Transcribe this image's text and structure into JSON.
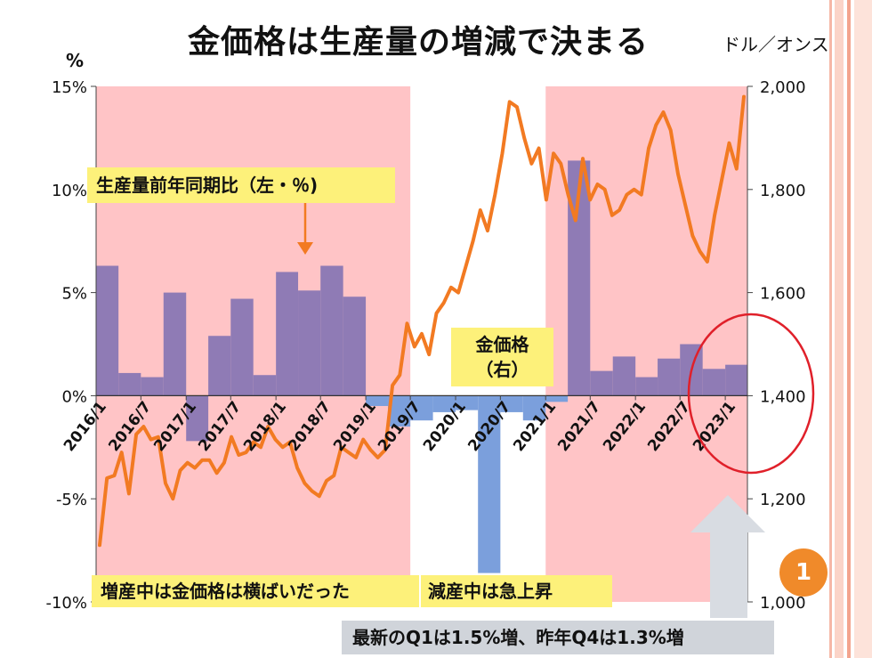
{
  "header": {
    "title": "金価格は生産量の増減で決まる",
    "right_unit": "ドル／オンス",
    "left_unit": "%"
  },
  "callouts": {
    "production": "生産量前年同期比（左・％)",
    "gold_line1": "金価格",
    "gold_line2": "（右）",
    "increase": "増産中は金価格は横ばいだった",
    "decrease": "減産中は急上昇",
    "latest": "最新のQ1は1.5%増、昨年Q4は1.3%増"
  },
  "badge": "1",
  "colors": {
    "bar": "#8f7bb5",
    "bar_negative": "#7b9fdc",
    "line": "#f27a22",
    "band": "#ffc4c6",
    "circle": "#e0202a",
    "callout": "#fdf17a",
    "arrow": "#d8dce2",
    "badge": "#f08a2a"
  },
  "chart_data": {
    "type": "bar+line",
    "x_tick_labels": [
      "2016/1",
      "2016/7",
      "2017/1",
      "2017/7",
      "2018/1",
      "2018/7",
      "2019/1",
      "2019/7",
      "2020/1",
      "2020/7",
      "2021/1",
      "2021/7",
      "2022/1",
      "2022/7",
      "2023/1"
    ],
    "y_left": {
      "ticks": [
        "-10%",
        "-5%",
        "0%",
        "5%",
        "10%",
        "15%"
      ],
      "range": [
        -10,
        15
      ],
      "unit": "%"
    },
    "y_right": {
      "ticks": [
        "1,000",
        "1,200",
        "1,400",
        "1,600",
        "1,800",
        "2,000"
      ],
      "range": [
        1000,
        2000
      ]
    },
    "shaded_periods": [
      {
        "start": "2016-01",
        "end": "2019-06"
      },
      {
        "start": "2021-01",
        "end": "2023-03"
      }
    ],
    "bars": {
      "name": "生産量前年同期比",
      "quarters": [
        "2016Q1",
        "2016Q2",
        "2016Q3",
        "2016Q4",
        "2017Q1",
        "2017Q2",
        "2017Q3",
        "2017Q4",
        "2018Q1",
        "2018Q2",
        "2018Q3",
        "2018Q4",
        "2019Q1",
        "2019Q2",
        "2019Q3",
        "2019Q4",
        "2020Q1",
        "2020Q2",
        "2020Q3",
        "2020Q4",
        "2021Q1",
        "2021Q2",
        "2021Q3",
        "2021Q4",
        "2022Q1",
        "2022Q2",
        "2022Q3",
        "2022Q4",
        "2023Q1"
      ],
      "values": [
        6.3,
        1.1,
        0.9,
        5.0,
        -2.2,
        2.9,
        4.7,
        1.0,
        6.0,
        5.1,
        6.3,
        4.8,
        -0.5,
        -1.5,
        -1.2,
        -0.8,
        -0.7,
        -8.6,
        -0.8,
        -1.2,
        -0.3,
        11.4,
        1.2,
        1.9,
        0.9,
        1.8,
        2.5,
        1.3,
        1.5
      ]
    },
    "line": {
      "name": "金価格",
      "values": [
        1110,
        1240,
        1245,
        1290,
        1210,
        1325,
        1340,
        1315,
        1320,
        1230,
        1200,
        1255,
        1270,
        1260,
        1275,
        1275,
        1250,
        1270,
        1320,
        1285,
        1290,
        1310,
        1300,
        1340,
        1315,
        1300,
        1310,
        1260,
        1230,
        1215,
        1205,
        1235,
        1245,
        1300,
        1290,
        1280,
        1315,
        1295,
        1280,
        1295,
        1420,
        1440,
        1540,
        1495,
        1520,
        1480,
        1560,
        1580,
        1610,
        1600,
        1650,
        1700,
        1760,
        1720,
        1790,
        1870,
        1970,
        1960,
        1900,
        1850,
        1880,
        1780,
        1870,
        1850,
        1790,
        1740,
        1860,
        1780,
        1810,
        1800,
        1750,
        1760,
        1790,
        1800,
        1790,
        1880,
        1925,
        1950,
        1915,
        1830,
        1770,
        1710,
        1680,
        1660,
        1750,
        1820,
        1890,
        1840,
        1980
      ]
    }
  }
}
